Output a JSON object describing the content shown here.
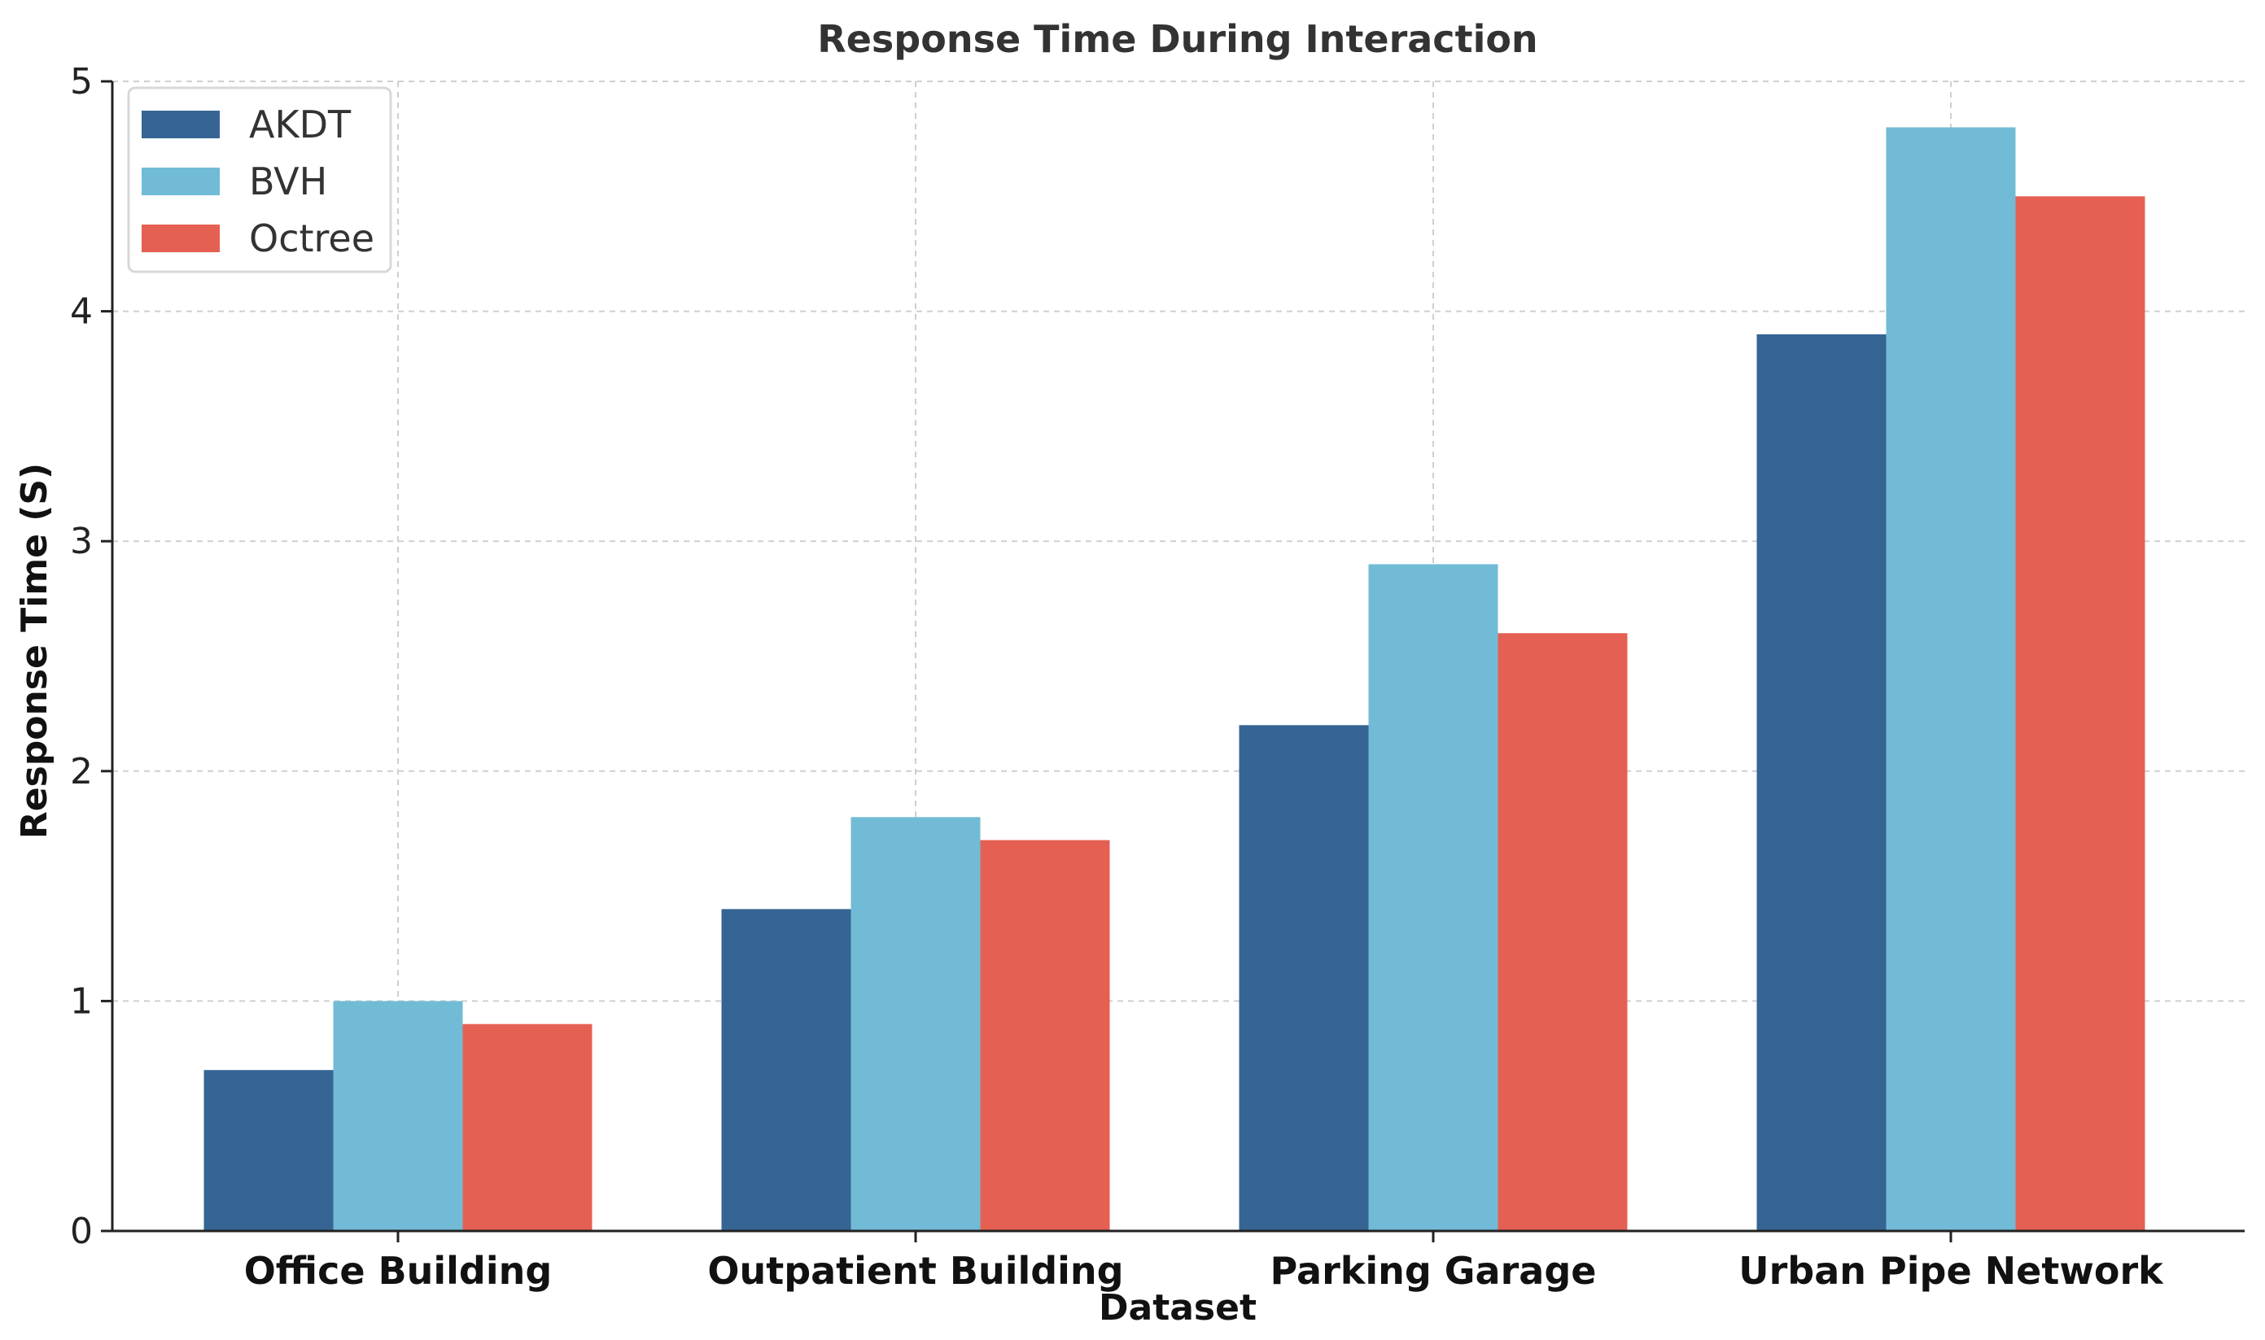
{
  "chart_data": {
    "type": "bar",
    "title": "Response Time During Interaction",
    "xlabel": "Dataset",
    "ylabel": "Response Time (S)",
    "categories": [
      "Office Building",
      "Outpatient Building",
      "Parking Garage",
      "Urban Pipe Network"
    ],
    "series": [
      {
        "name": "AKDT",
        "color": "#366594",
        "values": [
          0.7,
          1.4,
          2.2,
          3.9
        ]
      },
      {
        "name": "BVH",
        "color": "#72bbd6",
        "values": [
          1.0,
          1.8,
          2.9,
          4.8
        ]
      },
      {
        "name": "Octree",
        "color": "#e56052",
        "values": [
          0.9,
          1.7,
          2.6,
          4.5
        ]
      }
    ],
    "ylim": [
      0,
      5
    ],
    "yticks": [
      0,
      1,
      2,
      3,
      4,
      5
    ],
    "grid": true,
    "legend_position": "top-left"
  }
}
